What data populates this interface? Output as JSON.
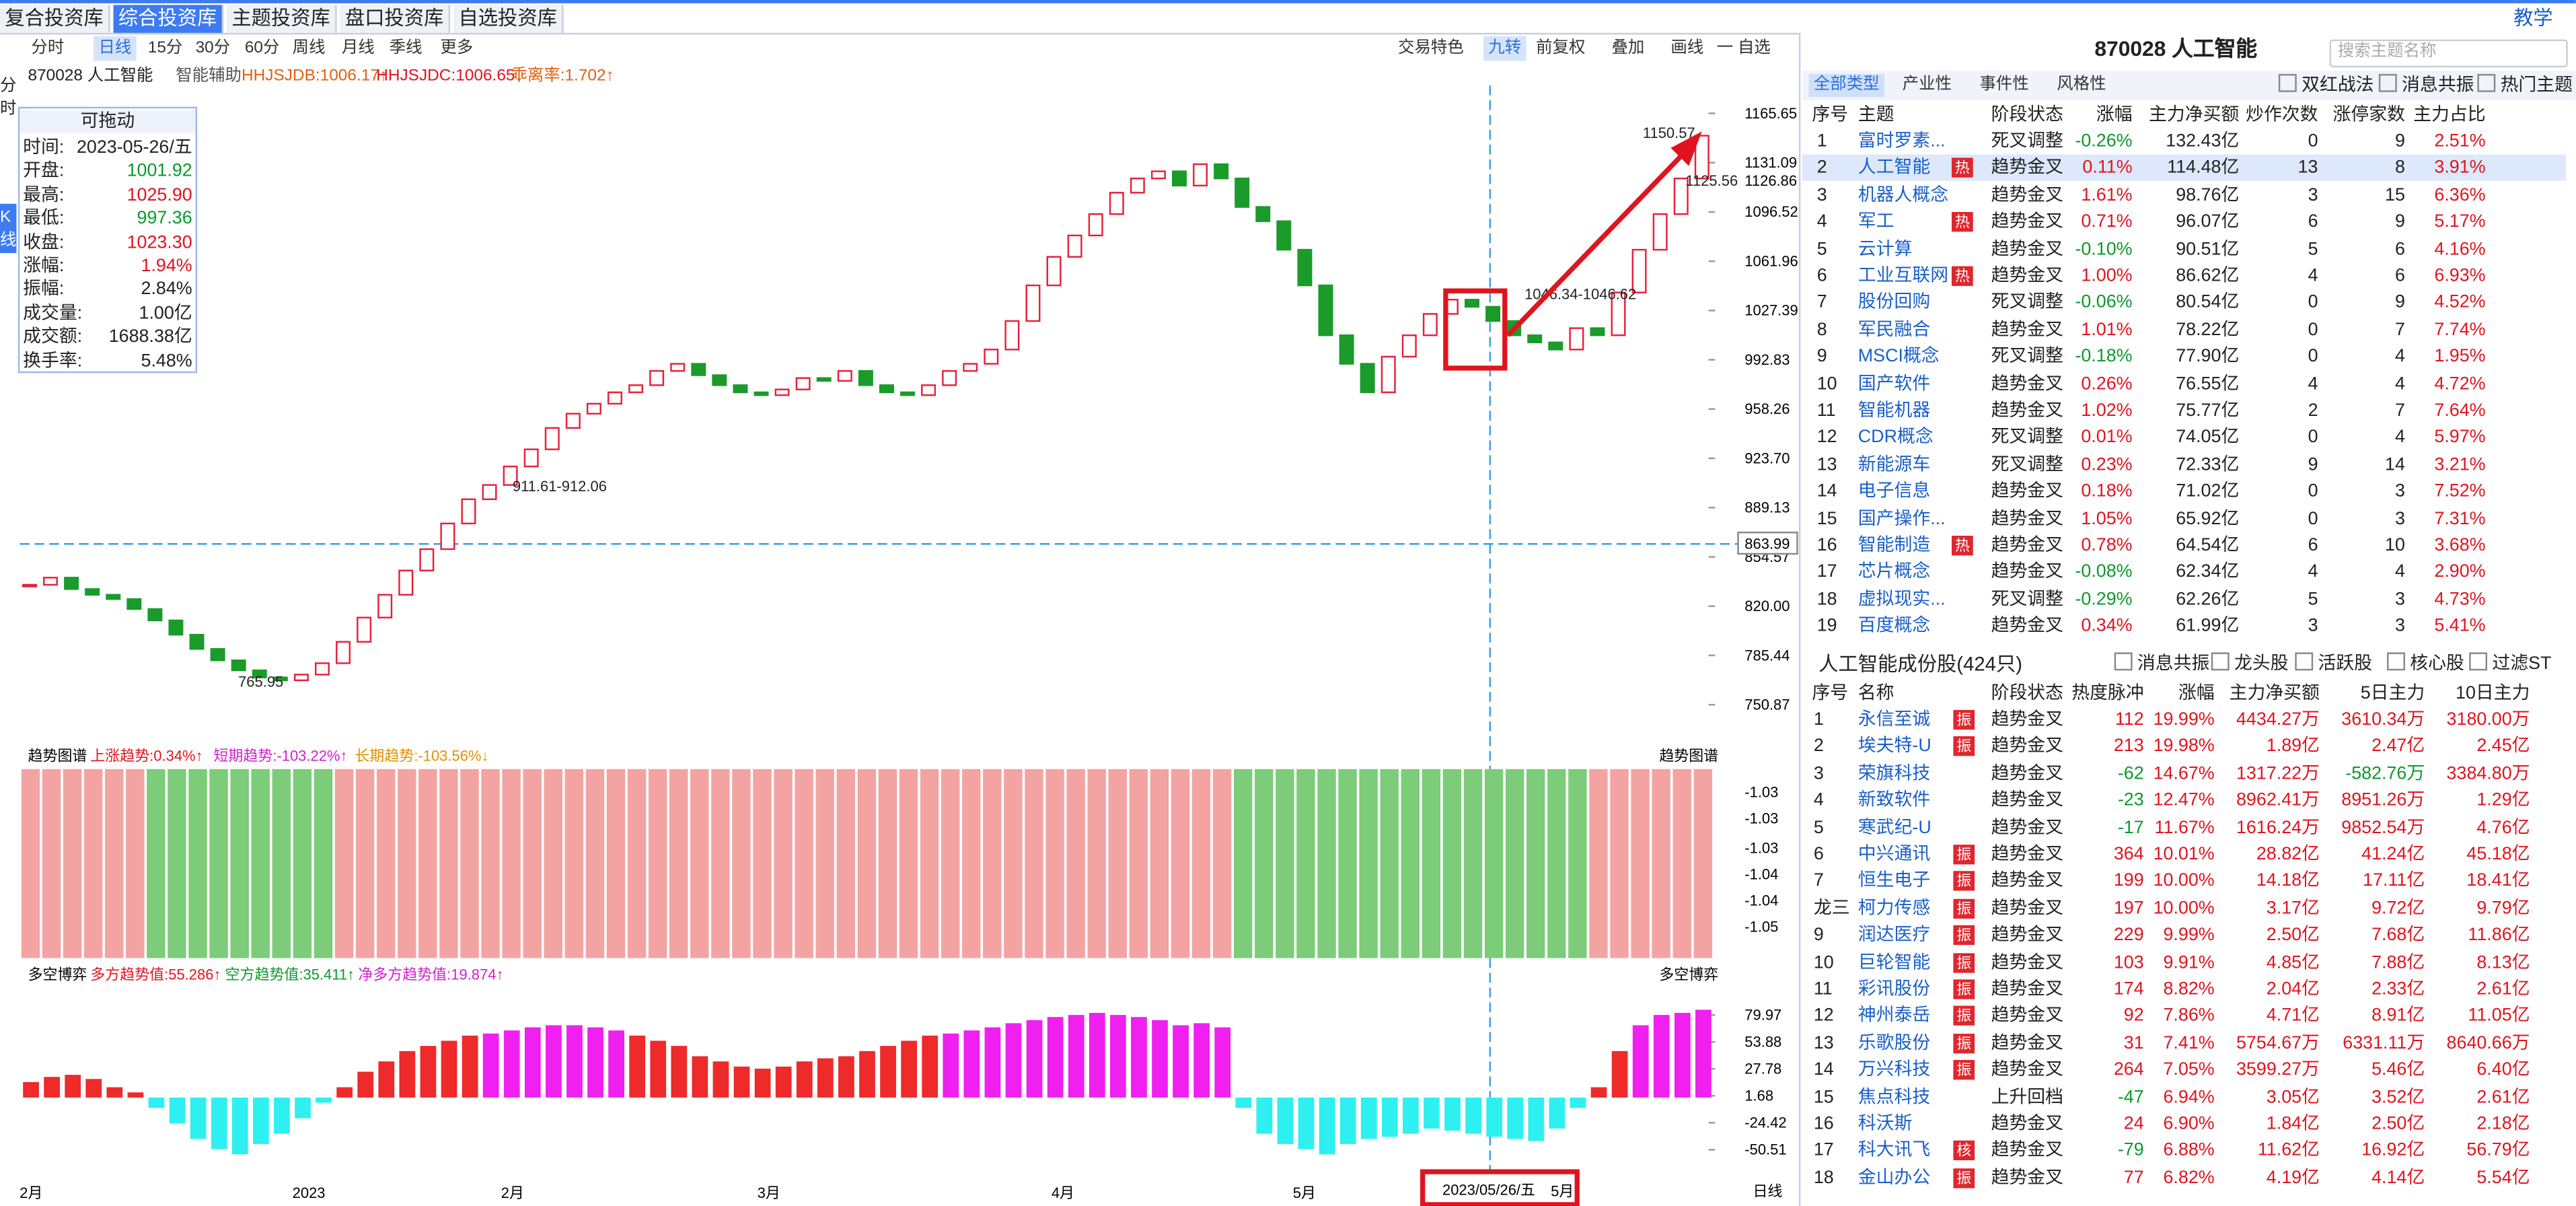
{
  "tabs": [
    "复合投资库",
    "综合投资库",
    "主题投资库",
    "盘口投资库",
    "自选投资库"
  ],
  "help": "教学",
  "toolbar": {
    "periods": [
      "分时",
      "日线",
      "15分",
      "30分",
      "60分",
      "周线",
      "月线",
      "季线",
      "更多"
    ],
    "tools": [
      "交易特色",
      "九转",
      "前复权",
      "叠加",
      "画线",
      "一 自选"
    ]
  },
  "side": [
    "分时",
    "K线"
  ],
  "stock_header": {
    "code_name": "870028 人工智能",
    "assist": "智能辅助",
    "indicators": [
      "HHJSJDB:1006.17↑",
      "HHJSJDC:1006.65↓",
      "乖离率:1.702↑"
    ]
  },
  "info_panel": {
    "title": "可拖动",
    "rows": [
      [
        "时间:",
        "2023-05-26/五"
      ],
      [
        "开盘:",
        "1001.92"
      ],
      [
        "最高:",
        "1025.90"
      ],
      [
        "最低:",
        "997.36"
      ],
      [
        "收盘:",
        "1023.30"
      ],
      [
        "涨幅:",
        "1.94%"
      ],
      [
        "振幅:",
        "2.84%"
      ],
      [
        "成交量:",
        "1.00亿"
      ],
      [
        "成交额:",
        "1688.38亿"
      ],
      [
        "换手率:",
        "5.48%"
      ]
    ]
  },
  "kline": {
    "ylim": [
      738,
      1176
    ],
    "yticks": [
      1165.65,
      1131.09,
      1096.52,
      1061.96,
      1027.39,
      992.83,
      958.26,
      {
        "value": 923.7,
        "label": "923.70"
      },
      889.13,
      854.57,
      {
        "value": 820,
        "label": "820.00"
      },
      785.44,
      750.87
    ],
    "crosshair_label": "863.99",
    "price_label": "1126.86",
    "annotations": [
      "765.95",
      "911.61-912.06",
      "1046.34-1046.62",
      "1150.57",
      "1125.56"
    ],
    "closes": [
      835,
      840,
      832,
      828,
      825,
      818,
      810,
      800,
      790,
      782,
      775,
      770,
      768,
      772,
      780,
      795,
      812,
      828,
      845,
      860,
      878,
      895,
      905,
      918,
      930,
      945,
      955,
      962,
      970,
      975,
      985,
      990,
      982,
      975,
      970,
      968,
      972,
      980,
      978,
      985,
      975,
      970,
      968,
      975,
      985,
      990,
      1000,
      1020,
      1045,
      1065,
      1080,
      1095,
      1110,
      1120,
      1125,
      1115,
      1130,
      1120,
      1100,
      1090,
      1070,
      1045,
      1010,
      990,
      970,
      995,
      1010,
      1025,
      1035,
      1030,
      1020,
      1010,
      1005,
      1000,
      1015,
      1010,
      1040,
      1070,
      1095,
      1120,
      1150
    ]
  },
  "trend_panel": {
    "title": "趋势图谱",
    "legend": [
      "上涨趋势:0.34%↑",
      "短期趋势:-103.22%↑",
      "长期趋势:-103.56%↓"
    ],
    "right_title": "趋势图谱",
    "axis_labels": [
      "-1.03",
      "-1.03",
      "-1.03",
      "-1.04",
      "-1.04",
      "-1.05"
    ]
  },
  "bs_panel": {
    "title": "多空博弈",
    "legend": [
      "多方趋势值:55.286↑",
      "空方趋势值:35.411↑",
      "净多方趋势值:19.874↑"
    ],
    "right_title": "多空博弈",
    "ylim": [
      -75,
      108
    ],
    "yticks": [
      79.97,
      53.88,
      27.78,
      1.68,
      -24.42,
      -50.51
    ],
    "values": [
      15,
      20,
      22,
      18,
      10,
      5,
      -10,
      -25,
      -40,
      -50,
      -55,
      -45,
      -35,
      -20,
      -5,
      10,
      25,
      35,
      45,
      50,
      55,
      60,
      62,
      65,
      68,
      70,
      70,
      68,
      65,
      60,
      55,
      50,
      40,
      35,
      30,
      28,
      30,
      35,
      38,
      40,
      45,
      50,
      55,
      60,
      62,
      65,
      68,
      72,
      75,
      78,
      80,
      82,
      80,
      78,
      75,
      70,
      72,
      68,
      -10,
      -35,
      -45,
      -50,
      -55,
      -45,
      -40,
      -38,
      -35,
      -30,
      -32,
      -35,
      -38,
      -40,
      -42,
      -30,
      -10,
      10,
      45,
      70,
      80,
      82,
      85
    ]
  },
  "x_axis": {
    "labels": [
      "2月",
      "2023",
      "2月",
      "3月",
      "4月",
      "5月"
    ],
    "cursor_date": "2023/05/26/五",
    "cursor_month": "5月",
    "period": "日线"
  },
  "right_panel": {
    "title": "870028 人工智能",
    "search": "搜索主题名称",
    "tabs": [
      "全部类型",
      "产业性",
      "事件性",
      "风格性"
    ],
    "checks": [
      "双红战法",
      "消息共振",
      "热门主题"
    ],
    "themes": {
      "header": [
        "序号",
        "主题",
        "阶段状态",
        "涨幅",
        "主力净买额",
        "炒作次数",
        "涨停家数",
        "主力占比"
      ],
      "rows": [
        {
          "no": "1",
          "name": "富时罗素...",
          "cells": [
            "死叉调整",
            "-0.26%",
            "132.43亿",
            "0",
            "9",
            "2.51%"
          ]
        },
        {
          "no": "2",
          "name": "人工智能",
          "tag": "热",
          "cells": [
            "趋势金叉",
            "0.11%",
            "114.48亿",
            "13",
            "8",
            "3.91%"
          ]
        },
        {
          "no": "3",
          "name": "机器人概念",
          "cells": [
            "趋势金叉",
            "1.61%",
            "98.76亿",
            "3",
            "15",
            "6.36%"
          ]
        },
        {
          "no": "4",
          "name": "军工",
          "tag": "热",
          "cells": [
            "趋势金叉",
            "0.71%",
            "96.07亿",
            "6",
            "9",
            "5.17%"
          ]
        },
        {
          "no": "5",
          "name": "云计算",
          "cells": [
            "趋势金叉",
            "-0.10%",
            "90.51亿",
            "5",
            "6",
            "4.16%"
          ]
        },
        {
          "no": "6",
          "name": "工业互联网",
          "tag": "热",
          "cells": [
            "趋势金叉",
            "1.00%",
            "86.62亿",
            "4",
            "6",
            "6.93%"
          ]
        },
        {
          "no": "7",
          "name": "股份回购",
          "cells": [
            "死叉调整",
            "-0.06%",
            "80.54亿",
            "0",
            "9",
            "4.52%"
          ]
        },
        {
          "no": "8",
          "name": "军民融合",
          "cells": [
            "趋势金叉",
            "1.01%",
            "78.22亿",
            "0",
            "7",
            "7.74%"
          ]
        },
        {
          "no": "9",
          "name": "MSCI概念",
          "cells": [
            "死叉调整",
            "-0.18%",
            "77.90亿",
            "0",
            "4",
            "1.95%"
          ]
        },
        {
          "no": "10",
          "name": "国产软件",
          "cells": [
            "趋势金叉",
            "0.26%",
            "76.55亿",
            "4",
            "4",
            "4.72%"
          ]
        },
        {
          "no": "11",
          "name": "智能机器",
          "cells": [
            "趋势金叉",
            "1.02%",
            "75.77亿",
            "2",
            "7",
            "7.64%"
          ]
        },
        {
          "no": "12",
          "name": "CDR概念",
          "cells": [
            "死叉调整",
            "0.01%",
            "74.05亿",
            "0",
            "4",
            "5.97%"
          ]
        },
        {
          "no": "13",
          "name": "新能源车",
          "cells": [
            "死叉调整",
            "0.23%",
            "72.33亿",
            "9",
            "14",
            "3.21%"
          ]
        },
        {
          "no": "14",
          "name": "电子信息",
          "cells": [
            "趋势金叉",
            "0.18%",
            "71.02亿",
            "0",
            "3",
            "7.52%"
          ]
        },
        {
          "no": "15",
          "name": "国产操作...",
          "cells": [
            "趋势金叉",
            "1.05%",
            "65.92亿",
            "0",
            "3",
            "7.31%"
          ]
        },
        {
          "no": "16",
          "name": "智能制造",
          "tag": "热",
          "cells": [
            "趋势金叉",
            "0.78%",
            "64.54亿",
            "6",
            "10",
            "3.68%"
          ]
        },
        {
          "no": "17",
          "name": "芯片概念",
          "cells": [
            "趋势金叉",
            "-0.08%",
            "62.34亿",
            "4",
            "4",
            "2.90%"
          ]
        },
        {
          "no": "18",
          "name": "虚拟现实...",
          "cells": [
            "死叉调整",
            "-0.29%",
            "62.26亿",
            "5",
            "3",
            "4.73%"
          ]
        },
        {
          "no": "19",
          "name": "百度概念",
          "cells": [
            "趋势金叉",
            "0.34%",
            "61.99亿",
            "3",
            "3",
            "5.41%"
          ]
        }
      ]
    },
    "stocks": {
      "title": "人工智能成份股(424只)",
      "checks": [
        "消息共振",
        "龙头股",
        "活跃股",
        "核心股",
        "过滤ST"
      ],
      "header": [
        "序号",
        "名称",
        "阶段状态",
        "热度脉冲",
        "涨幅",
        "主力净买额",
        "5日主力",
        "10日主力"
      ],
      "rows": [
        {
          "no": "1",
          "name": "永信至诚",
          "tag": "振",
          "cells": [
            "趋势金叉",
            "112",
            "19.99%",
            "4434.27万",
            "3610.34万",
            "3180.00万"
          ]
        },
        {
          "no": "2",
          "name": "埃夫特-U",
          "tag": "振",
          "cells": [
            "趋势金叉",
            "213",
            "19.98%",
            "1.89亿",
            "2.47亿",
            "2.45亿"
          ]
        },
        {
          "no": "3",
          "name": "荣旗科技",
          "cells": [
            "趋势金叉",
            "-62",
            "14.67%",
            "1317.22万",
            "-582.76万",
            "3384.80万"
          ]
        },
        {
          "no": "4",
          "name": "新致软件",
          "cells": [
            "趋势金叉",
            "-23",
            "12.47%",
            "8962.41万",
            "8951.26万",
            "1.29亿"
          ]
        },
        {
          "no": "5",
          "name": "寒武纪-U",
          "cells": [
            "趋势金叉",
            "-17",
            "11.67%",
            "1616.24万",
            "9852.54万",
            "4.76亿"
          ]
        },
        {
          "no": "6",
          "name": "中兴通讯",
          "tag": "振",
          "cells": [
            "趋势金叉",
            "364",
            "10.01%",
            "28.82亿",
            "41.24亿",
            "45.18亿"
          ]
        },
        {
          "no": "7",
          "name": "恒生电子",
          "tag": "振",
          "cells": [
            "趋势金叉",
            "199",
            "10.00%",
            "14.18亿",
            "17.11亿",
            "18.41亿"
          ]
        },
        {
          "no": "龙三",
          "name": "柯力传感",
          "tag": "振",
          "cells": [
            "趋势金叉",
            "197",
            "10.00%",
            "3.17亿",
            "9.72亿",
            "9.79亿"
          ]
        },
        {
          "no": "9",
          "name": "润达医疗",
          "tag": "振",
          "cells": [
            "趋势金叉",
            "229",
            "9.99%",
            "2.50亿",
            "7.68亿",
            "11.86亿"
          ]
        },
        {
          "no": "10",
          "name": "巨轮智能",
          "tag": "振",
          "cells": [
            "趋势金叉",
            "103",
            "9.91%",
            "4.85亿",
            "7.88亿",
            "8.13亿"
          ]
        },
        {
          "no": "11",
          "name": "彩讯股份",
          "tag": "振",
          "cells": [
            "趋势金叉",
            "174",
            "8.82%",
            "2.04亿",
            "2.33亿",
            "2.61亿"
          ]
        },
        {
          "no": "12",
          "name": "神州泰岳",
          "tag": "振",
          "cells": [
            "趋势金叉",
            "92",
            "7.86%",
            "4.71亿",
            "8.91亿",
            "11.05亿"
          ]
        },
        {
          "no": "13",
          "name": "乐歌股份",
          "tag": "振",
          "cells": [
            "趋势金叉",
            "31",
            "7.41%",
            "5754.67万",
            "6331.11万",
            "8640.66万"
          ]
        },
        {
          "no": "14",
          "name": "万兴科技",
          "tag": "振",
          "cells": [
            "趋势金叉",
            "264",
            "7.05%",
            "3599.27万",
            "5.46亿",
            "6.40亿"
          ]
        },
        {
          "no": "15",
          "name": "焦点科技",
          "cells": [
            "上升回档",
            "-47",
            "6.94%",
            "3.05亿",
            "3.52亿",
            "2.61亿"
          ]
        },
        {
          "no": "16",
          "name": "科沃斯",
          "cells": [
            "趋势金叉",
            "24",
            "6.90%",
            "1.84亿",
            "2.50亿",
            "2.18亿"
          ]
        },
        {
          "no": "17",
          "name": "科大讯飞",
          "tag": "核",
          "cells": [
            "趋势金叉",
            "-79",
            "6.88%",
            "11.62亿",
            "16.92亿",
            "56.79亿"
          ]
        },
        {
          "no": "18",
          "name": "金山办公",
          "tag": "振",
          "cells": [
            "趋势金叉",
            "77",
            "6.82%",
            "4.19亿",
            "4.14亿",
            "5.54亿"
          ]
        }
      ]
    }
  }
}
